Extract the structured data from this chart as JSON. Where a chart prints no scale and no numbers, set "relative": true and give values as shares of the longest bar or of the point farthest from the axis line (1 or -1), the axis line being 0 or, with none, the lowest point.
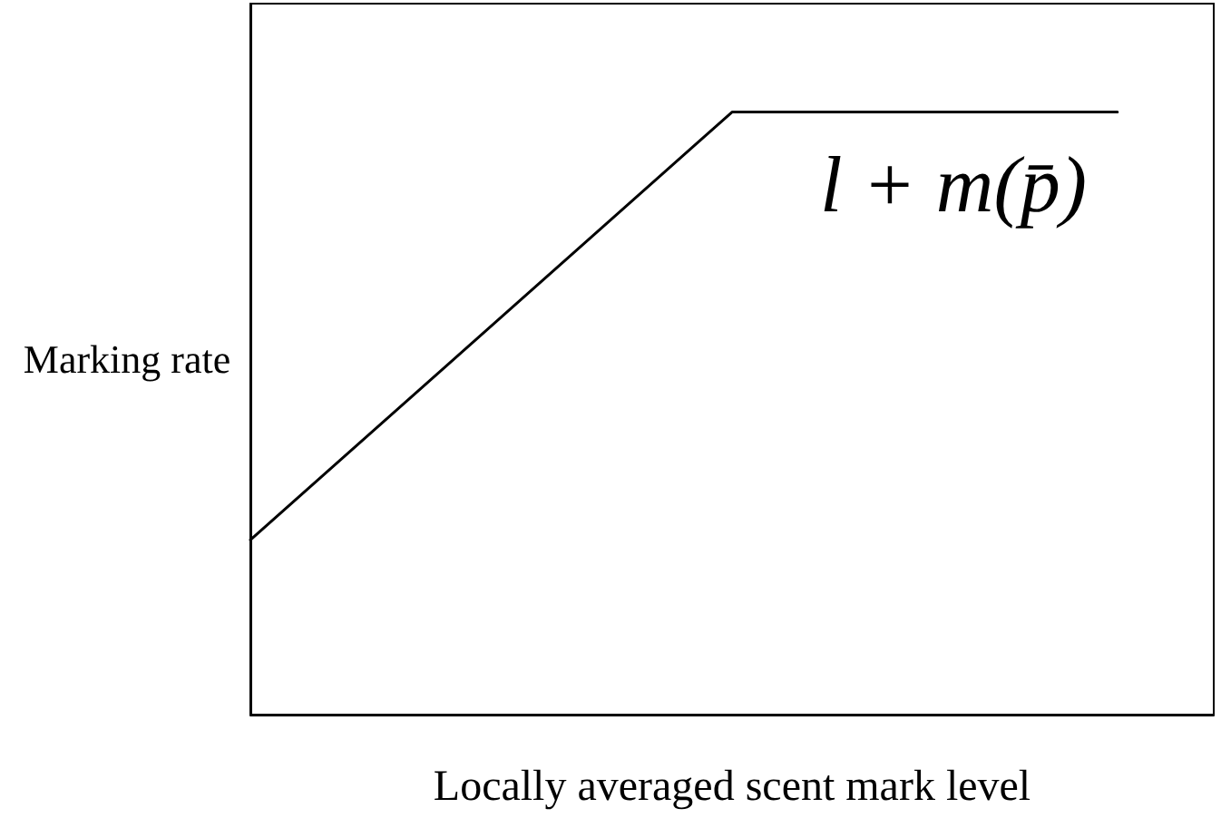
{
  "chart_data": {
    "type": "line",
    "relative": true,
    "xlabel": "Locally averaged scent mark level",
    "ylabel": "Marking rate",
    "annotations": [
      "l + m(p̄)"
    ],
    "categories": [
      null,
      null,
      null,
      null,
      null,
      null,
      null,
      null,
      null,
      null,
      null,
      null,
      null,
      null,
      null,
      null,
      null,
      null,
      null,
      null,
      null
    ],
    "series": [
      {
        "color": "#000000",
        "values": [
          0.29,
          null,
          null,
          null,
          null,
          null,
          null,
          null,
          null,
          null,
          1,
          null,
          null,
          null,
          null,
          null,
          null,
          null,
          1,
          null,
          null
        ]
      }
    ],
    "marker": "none",
    "line_style": "solid"
  }
}
